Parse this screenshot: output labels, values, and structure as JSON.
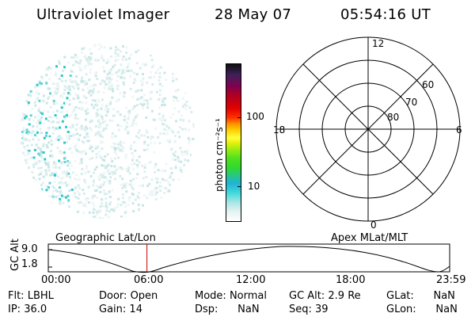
{
  "header": {
    "title": "Ultraviolet Imager",
    "date": "28 May 07",
    "time": "05:54:16 UT"
  },
  "colorbar": {
    "label": "photon cm⁻²s⁻¹",
    "ticks": [
      "100",
      "10"
    ]
  },
  "polar": {
    "mlt_labels": {
      "top": "12",
      "left": "18",
      "right": "6",
      "bottom": "0"
    },
    "lat_labels": [
      "60",
      "70",
      "80"
    ]
  },
  "timeline": {
    "left_label": "Geographic Lat/Lon",
    "right_label": "Apex MLat/MLT",
    "ylabel": "GC Alt",
    "y_ticks": [
      "9.0",
      "1.8"
    ],
    "x_ticks": [
      "00:00",
      "06:00",
      "12:00",
      "18:00",
      "23:59"
    ],
    "marker_color": "#c00000",
    "marker_time_hours": 5.9
  },
  "footer": {
    "rows": [
      [
        {
          "label": "Flt:",
          "value": "LBHL"
        },
        {
          "label": "Door:",
          "value": "Open"
        },
        {
          "label": "Mode:",
          "value": "Normal"
        },
        {
          "label": "GC Alt:",
          "value": "2.9 Re"
        },
        {
          "label": "GLat:",
          "value": "NaN"
        }
      ],
      [
        {
          "label": "IP:",
          "value": "36.0"
        },
        {
          "label": "Gain:",
          "value": "14"
        },
        {
          "label": "Dsp:",
          "value": "NaN"
        },
        {
          "label": "Seq:",
          "value": "39"
        },
        {
          "label": "GLon:",
          "value": "NaN"
        }
      ]
    ]
  }
}
